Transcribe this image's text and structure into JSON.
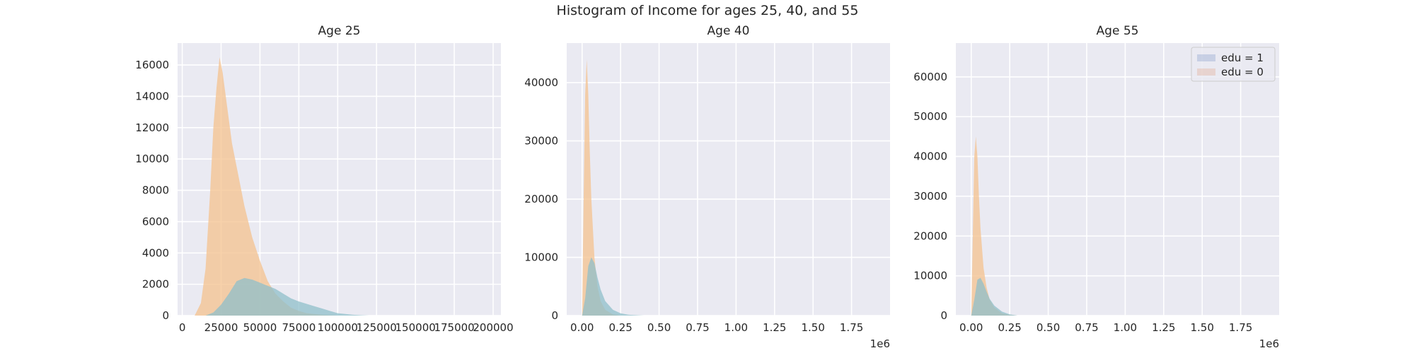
{
  "figure": {
    "suptitle": "Histogram of Income for ages 25, 40, and 55"
  },
  "colors": {
    "background": "#EAEAF2",
    "grid": "#FFFFFF",
    "edu1": "#4C72B0",
    "edu0": "#DD8452",
    "hist_orange": "#F4C18E",
    "hist_blue": "#8FBFC9"
  },
  "legend": {
    "entries": [
      "edu = 1",
      "edu = 0"
    ],
    "placement": "top-right",
    "panel": 2
  },
  "chart_data": [
    {
      "type": "area",
      "title": "Age 25",
      "xlabel": "",
      "ylabel": "",
      "xlim": [
        -3000,
        205000
      ],
      "ylim": [
        0,
        17400
      ],
      "xticks": [
        0,
        25000,
        50000,
        75000,
        100000,
        125000,
        150000,
        175000,
        200000
      ],
      "xtick_labels": [
        "0",
        "25000",
        "50000",
        "75000",
        "100000",
        "125000",
        "150000",
        "175000",
        "200000"
      ],
      "yticks": [
        0,
        2000,
        4000,
        6000,
        8000,
        10000,
        12000,
        14000,
        16000
      ],
      "ytick_labels": [
        "0",
        "2000",
        "4000",
        "6000",
        "8000",
        "10000",
        "12000",
        "14000",
        "16000"
      ],
      "offset_label": "",
      "series": [
        {
          "name": "edu = 1",
          "x": [
            15000,
            20000,
            25000,
            30000,
            35000,
            40000,
            45000,
            50000,
            55000,
            60000,
            65000,
            70000,
            75000,
            80000,
            85000,
            90000,
            95000,
            100000,
            110000,
            120000
          ],
          "values": [
            0,
            200,
            700,
            1400,
            2200,
            2400,
            2300,
            2100,
            1900,
            1700,
            1400,
            1100,
            900,
            750,
            600,
            450,
            300,
            150,
            50,
            0
          ]
        },
        {
          "name": "edu = 0",
          "x": [
            8000,
            12000,
            15000,
            18000,
            20000,
            22000,
            24000,
            26000,
            28000,
            30000,
            32000,
            35000,
            38000,
            40000,
            45000,
            50000,
            55000,
            60000,
            65000,
            70000,
            75000,
            80000,
            90000,
            100000
          ],
          "values": [
            0,
            800,
            3000,
            8000,
            12000,
            14500,
            16500,
            15500,
            14000,
            12500,
            11000,
            9500,
            8000,
            7000,
            5000,
            3500,
            2200,
            1400,
            900,
            500,
            300,
            150,
            50,
            0
          ]
        }
      ]
    },
    {
      "type": "area",
      "title": "Age 40",
      "xlabel": "",
      "ylabel": "",
      "xlim": [
        -0.1,
        2.0
      ],
      "ylim": [
        0,
        46800
      ],
      "xticks": [
        0,
        0.25,
        0.5,
        0.75,
        1.0,
        1.25,
        1.5,
        1.75
      ],
      "xtick_labels": [
        "0.00",
        "0.25",
        "0.50",
        "0.75",
        "1.00",
        "1.25",
        "1.50",
        "1.75"
      ],
      "yticks": [
        0,
        10000,
        20000,
        30000,
        40000
      ],
      "ytick_labels": [
        "0",
        "10000",
        "20000",
        "30000",
        "40000"
      ],
      "offset_label": "1e6",
      "series": [
        {
          "name": "edu = 1",
          "x": [
            0.0,
            0.02,
            0.04,
            0.06,
            0.08,
            0.1,
            0.12,
            0.15,
            0.2,
            0.25,
            0.3,
            0.4
          ],
          "values": [
            0,
            3000,
            8500,
            10000,
            9000,
            6500,
            4500,
            2500,
            1000,
            400,
            150,
            0
          ]
        },
        {
          "name": "edu = 0",
          "x": [
            0.0,
            0.01,
            0.02,
            0.03,
            0.04,
            0.05,
            0.06,
            0.08,
            0.1,
            0.12,
            0.15,
            0.2,
            0.25
          ],
          "values": [
            0,
            20000,
            38000,
            44000,
            38000,
            28000,
            20000,
            10000,
            5000,
            2500,
            1000,
            200,
            0
          ]
        }
      ]
    },
    {
      "type": "area",
      "title": "Age 55",
      "xlabel": "",
      "ylabel": "",
      "xlim": [
        -0.1,
        2.0
      ],
      "ylim": [
        0,
        68500
      ],
      "xticks": [
        0,
        0.25,
        0.5,
        0.75,
        1.0,
        1.25,
        1.5,
        1.75
      ],
      "xtick_labels": [
        "0.00",
        "0.25",
        "0.50",
        "0.75",
        "1.00",
        "1.25",
        "1.50",
        "1.75"
      ],
      "yticks": [
        0,
        10000,
        20000,
        30000,
        40000,
        50000,
        60000
      ],
      "ytick_labels": [
        "0",
        "10000",
        "20000",
        "30000",
        "40000",
        "50000",
        "60000"
      ],
      "offset_label": "1e6",
      "series": [
        {
          "name": "edu = 1",
          "x": [
            0.0,
            0.02,
            0.04,
            0.06,
            0.08,
            0.1,
            0.12,
            0.15,
            0.2,
            0.25,
            0.3
          ],
          "values": [
            0,
            4000,
            9000,
            9500,
            8000,
            6000,
            4200,
            2500,
            1000,
            300,
            0
          ]
        },
        {
          "name": "edu = 0",
          "x": [
            0.0,
            0.01,
            0.02,
            0.03,
            0.04,
            0.05,
            0.06,
            0.08,
            0.1,
            0.12,
            0.15,
            0.2,
            0.25,
            0.3
          ],
          "values": [
            0,
            20000,
            40000,
            45000,
            40000,
            30000,
            22000,
            12000,
            7000,
            4000,
            2000,
            600,
            150,
            0
          ]
        }
      ]
    }
  ]
}
